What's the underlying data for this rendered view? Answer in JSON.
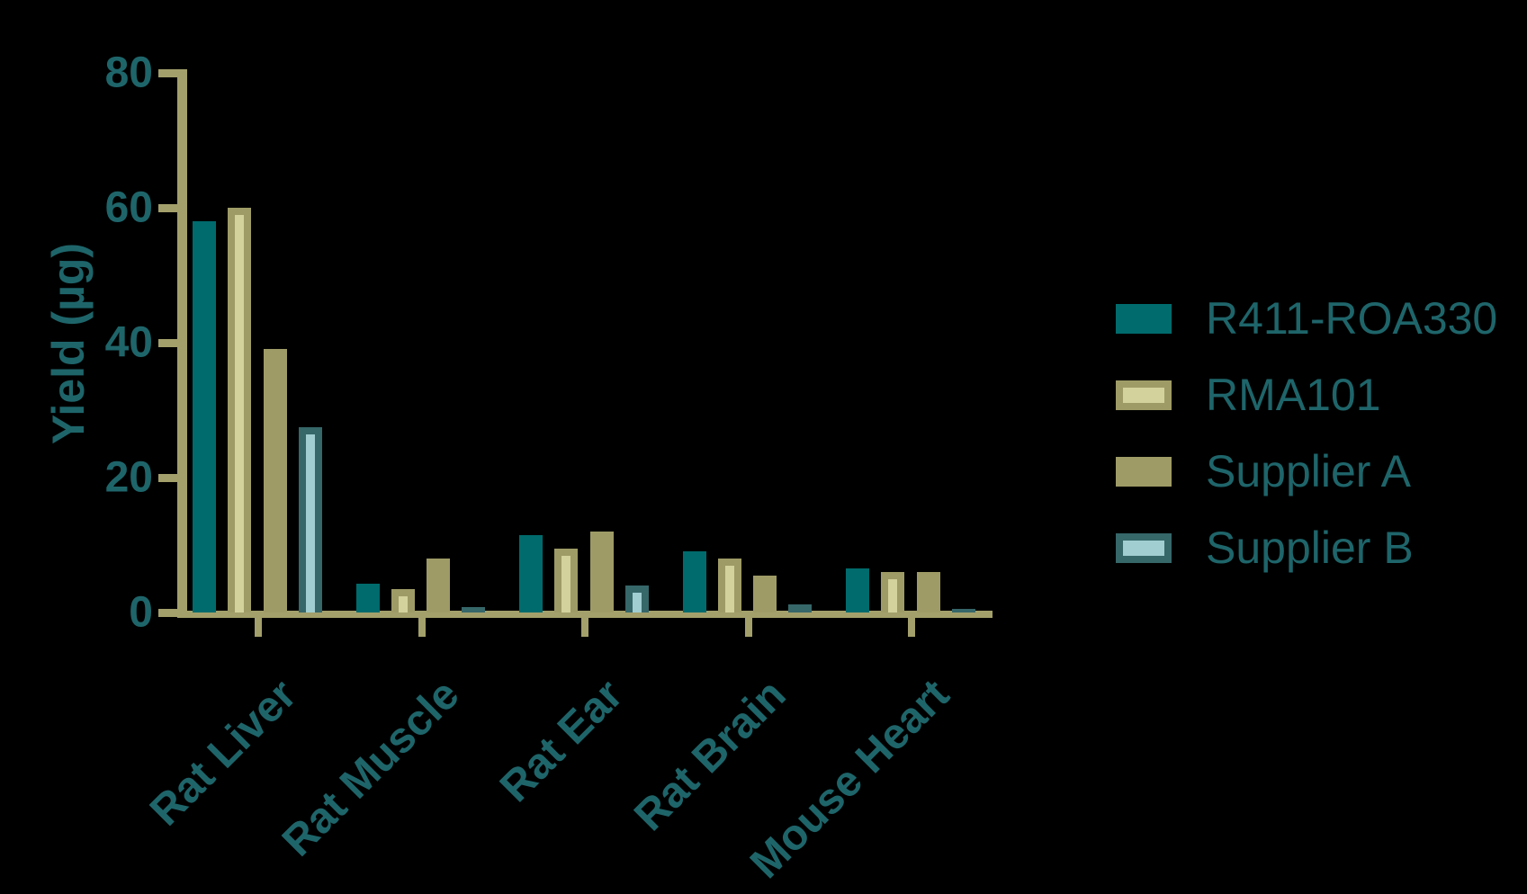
{
  "chart_data": {
    "type": "bar",
    "title": "",
    "ylabel": "Yield (µg)",
    "xlabel": "",
    "ylim": [
      0,
      80
    ],
    "yticks": [
      0,
      20,
      40,
      60,
      80
    ],
    "grid": false,
    "legend_position": "right",
    "categories": [
      "Rat Liver",
      "Rat Muscle",
      "Rat Ear",
      "Rat Brain",
      "Mouse Heart"
    ],
    "series": [
      {
        "name": "R411-ROA330",
        "fill": "teal",
        "outline": null,
        "values": [
          58,
          4.2,
          11.5,
          9,
          6.5
        ]
      },
      {
        "name": "RMA101",
        "fill": "light_khaki",
        "outline": "khaki",
        "values": [
          60,
          3.4,
          9.5,
          8,
          6
        ]
      },
      {
        "name": "Supplier A",
        "fill": "khaki",
        "outline": null,
        "values": [
          39,
          8,
          12,
          5.5,
          6
        ]
      },
      {
        "name": "Supplier B",
        "fill": "pale_blue",
        "outline": "outline_teal",
        "values": [
          27.5,
          0.8,
          4,
          1.2,
          0.5
        ]
      }
    ]
  },
  "colors": {
    "background": "#000000",
    "teal": "#006B6D",
    "khaki": "#9E9B66",
    "light_khaki": "#D3D19C",
    "pale_blue": "#A0CED1",
    "outline_teal": "#366769",
    "axis": "#A3A06B",
    "text": "#1E656A"
  }
}
